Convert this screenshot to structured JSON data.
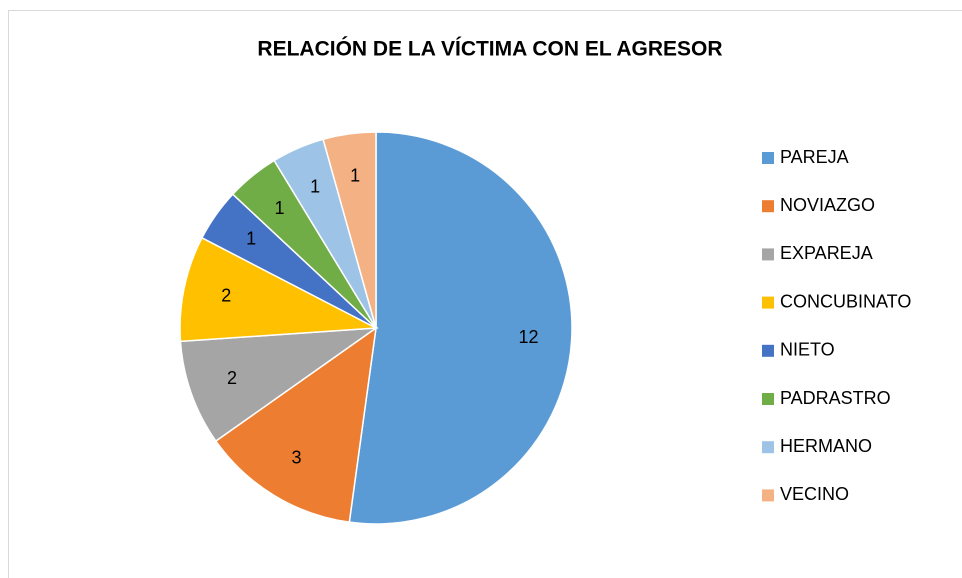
{
  "chart_data": {
    "type": "pie",
    "title": "RELACIÓN DE LA VÍCTIMA CON EL AGRESOR",
    "categories": [
      "PAREJA",
      "NOVIAZGO",
      "EXPAREJA",
      "CONCUBINATO",
      "NIETO",
      "PADRASTRO",
      "HERMANO",
      "VECINO"
    ],
    "values": [
      12,
      3,
      2,
      2,
      1,
      1,
      1,
      1
    ],
    "colors": [
      "#5b9bd5",
      "#ed7d31",
      "#a5a5a5",
      "#ffc000",
      "#4472c4",
      "#70ad47",
      "#9dc3e6",
      "#f4b183"
    ],
    "legend": "right"
  }
}
